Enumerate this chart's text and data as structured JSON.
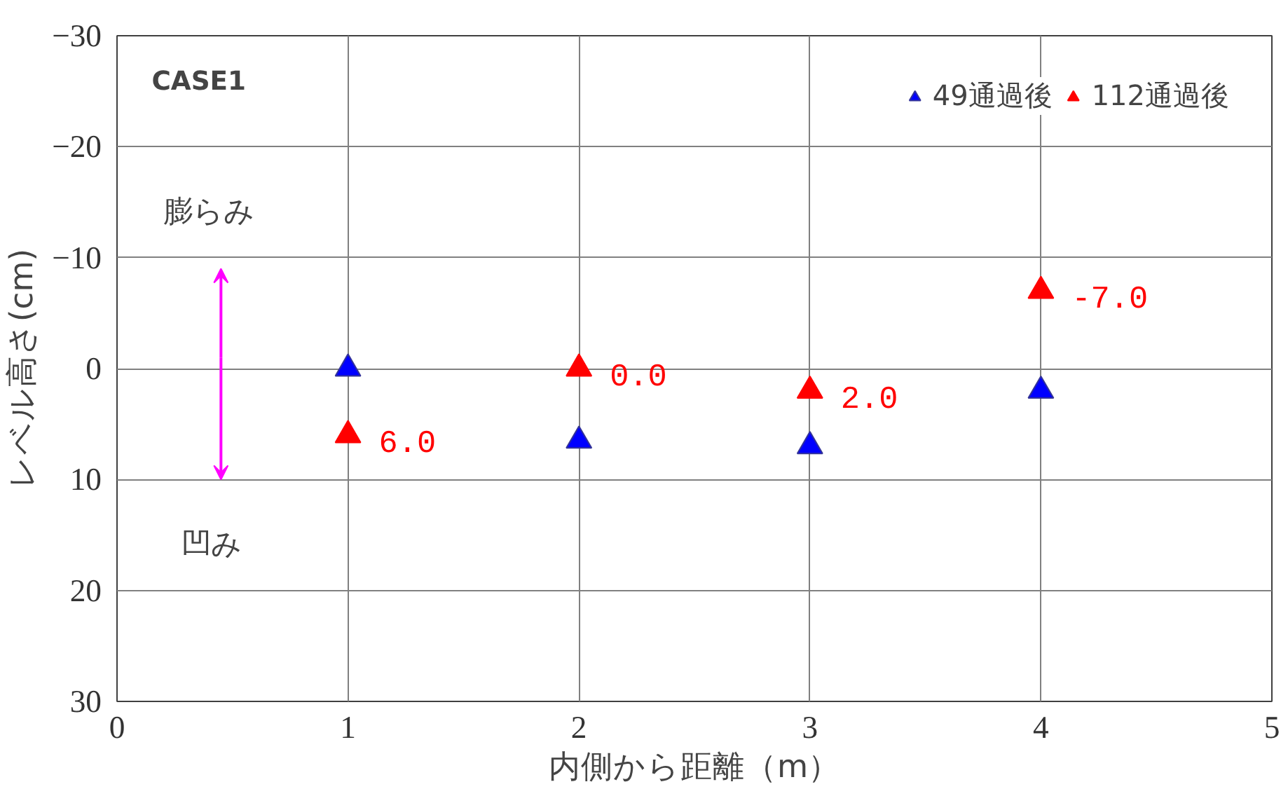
{
  "chart_data": {
    "type": "scatter",
    "xlabel": "内側から距離（m）",
    "ylabel": "レベル高さ(cm)",
    "x": [
      1,
      2,
      3,
      4
    ],
    "series": [
      {
        "name": "49通過後",
        "color": "#0000ff",
        "values": [
          0,
          6.5,
          7,
          2
        ]
      },
      {
        "name": "112通過後",
        "color": "#ff0000",
        "values": [
          6,
          0,
          2,
          -7
        ],
        "value_labels": [
          "6.0",
          "0.0",
          "2.0",
          "-7.0"
        ]
      }
    ],
    "xlim": [
      0,
      5
    ],
    "xticks": [
      0,
      1,
      2,
      3,
      4,
      5
    ],
    "ylim": [
      30,
      -30
    ],
    "yticks": [
      -30,
      -20,
      -10,
      0,
      10,
      20,
      30
    ],
    "annotations": [
      "CASE1",
      "膨らみ",
      "凹み"
    ],
    "grid": true,
    "legend": "top right",
    "marker": "triangle"
  }
}
